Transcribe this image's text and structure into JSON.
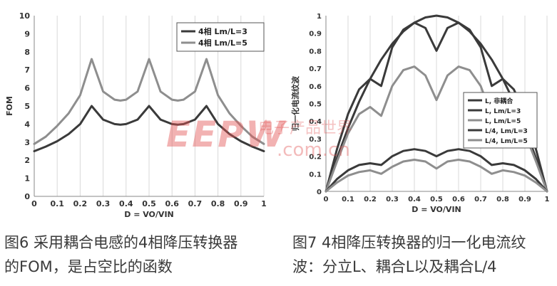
{
  "captions": {
    "left_line1": "图6  采用耦合电感的4相降压转换器",
    "left_line2": "的FOM，是占空比的函数",
    "right_line1": "图7  4相降压转换器的归一化电流纹",
    "right_line2": "波：分立L、耦合L以及耦合L/4"
  },
  "watermark": {
    "text": "EEPW",
    "cn": "电子产品世界",
    "url": ".com.cn"
  },
  "colors": {
    "dark": "#3a3a3a",
    "light": "#8e8e8e",
    "axis": "#888888",
    "grid": "#d8d8d8"
  },
  "chart_data": [
    {
      "type": "line",
      "title": "",
      "xlabel": "D = VO/VIN",
      "ylabel": "FOM",
      "xlim": [
        0,
        1
      ],
      "ylim": [
        0,
        10
      ],
      "xticks": [
        0,
        0.1,
        0.2,
        0.3,
        0.4,
        0.5,
        0.6,
        0.7,
        0.8,
        0.9,
        1
      ],
      "yticks": [
        0,
        1,
        2,
        3,
        4,
        5,
        6,
        7,
        8,
        9,
        10
      ],
      "grid": "vertical",
      "legend_position": "top-right",
      "series": [
        {
          "name": "4相 Lm/L=3",
          "color": "#3a3a3a",
          "x": [
            0,
            0.05,
            0.1,
            0.15,
            0.2,
            0.25,
            0.3,
            0.35,
            0.375,
            0.4,
            0.45,
            0.5,
            0.55,
            0.6,
            0.625,
            0.65,
            0.7,
            0.75,
            0.8,
            0.85,
            0.9,
            0.95,
            1
          ],
          "y": [
            2.5,
            2.75,
            3.05,
            3.45,
            4.0,
            5.0,
            4.25,
            4.0,
            3.97,
            4.0,
            4.25,
            5.0,
            4.25,
            4.0,
            3.97,
            4.0,
            4.25,
            5.0,
            4.0,
            3.45,
            3.05,
            2.75,
            2.5
          ]
        },
        {
          "name": "4相 Lm/L=5",
          "color": "#8e8e8e",
          "x": [
            0,
            0.05,
            0.1,
            0.15,
            0.2,
            0.25,
            0.3,
            0.35,
            0.375,
            0.4,
            0.45,
            0.5,
            0.55,
            0.6,
            0.625,
            0.65,
            0.7,
            0.75,
            0.8,
            0.85,
            0.9,
            0.95,
            1
          ],
          "y": [
            2.9,
            3.3,
            3.9,
            4.6,
            5.6,
            7.6,
            5.8,
            5.35,
            5.3,
            5.35,
            5.8,
            7.6,
            5.8,
            5.35,
            5.3,
            5.35,
            5.8,
            7.6,
            5.6,
            4.6,
            3.9,
            3.3,
            2.9
          ]
        }
      ]
    },
    {
      "type": "line",
      "title": "",
      "xlabel": "D = VO/VIN",
      "ylabel": "归一化电流纹波",
      "xlim": [
        0,
        1
      ],
      "ylim": [
        0,
        1
      ],
      "xticks": [
        0,
        0.1,
        0.2,
        0.3,
        0.4,
        0.5,
        0.6,
        0.7,
        0.8,
        0.9,
        1
      ],
      "yticks": [
        0,
        0.1,
        0.2,
        0.3,
        0.4,
        0.5,
        0.6,
        0.7,
        0.8,
        0.9,
        1
      ],
      "grid": "vertical",
      "legend_position": "middle-right",
      "series": [
        {
          "name": "L, 非耦合",
          "color": "#3a3a3a",
          "x": [
            0,
            0.05,
            0.1,
            0.15,
            0.2,
            0.25,
            0.3,
            0.35,
            0.4,
            0.45,
            0.5,
            0.55,
            0.6,
            0.65,
            0.7,
            0.75,
            0.8,
            0.85,
            0.9,
            0.95,
            1
          ],
          "y": [
            0,
            0.19,
            0.36,
            0.51,
            0.64,
            0.75,
            0.84,
            0.91,
            0.96,
            0.99,
            1.0,
            0.99,
            0.96,
            0.91,
            0.84,
            0.75,
            0.64,
            0.51,
            0.36,
            0.19,
            0
          ]
        },
        {
          "name": "L, Lm/L=3",
          "color": "#3a3a3a",
          "x": [
            0,
            0.05,
            0.1,
            0.15,
            0.2,
            0.25,
            0.3,
            0.35,
            0.4,
            0.45,
            0.5,
            0.55,
            0.6,
            0.65,
            0.7,
            0.75,
            0.8,
            0.85,
            0.9,
            0.95,
            1
          ],
          "y": [
            0,
            0.24,
            0.44,
            0.58,
            0.64,
            0.6,
            0.82,
            0.92,
            0.96,
            0.93,
            0.8,
            0.93,
            0.96,
            0.92,
            0.82,
            0.6,
            0.64,
            0.58,
            0.44,
            0.24,
            0
          ]
        },
        {
          "name": "L, Lm/L=5",
          "color": "#8e8e8e",
          "x": [
            0,
            0.05,
            0.1,
            0.15,
            0.2,
            0.25,
            0.3,
            0.35,
            0.4,
            0.45,
            0.5,
            0.55,
            0.6,
            0.65,
            0.7,
            0.75,
            0.8,
            0.85,
            0.9,
            0.95,
            1
          ],
          "y": [
            0,
            0.17,
            0.33,
            0.44,
            0.48,
            0.43,
            0.6,
            0.69,
            0.71,
            0.66,
            0.52,
            0.66,
            0.71,
            0.69,
            0.6,
            0.43,
            0.48,
            0.44,
            0.33,
            0.17,
            0
          ]
        },
        {
          "name": "L/4, Lm/L=3",
          "color": "#3a3a3a",
          "x": [
            0,
            0.05,
            0.1,
            0.15,
            0.2,
            0.25,
            0.3,
            0.35,
            0.4,
            0.45,
            0.5,
            0.55,
            0.6,
            0.65,
            0.7,
            0.75,
            0.8,
            0.85,
            0.9,
            0.95,
            1
          ],
          "y": [
            0,
            0.07,
            0.12,
            0.15,
            0.16,
            0.15,
            0.2,
            0.23,
            0.24,
            0.23,
            0.2,
            0.23,
            0.24,
            0.23,
            0.2,
            0.15,
            0.16,
            0.15,
            0.12,
            0.07,
            0
          ]
        },
        {
          "name": "L/4, Lm/L=5",
          "color": "#8e8e8e",
          "x": [
            0,
            0.05,
            0.1,
            0.15,
            0.2,
            0.25,
            0.3,
            0.35,
            0.4,
            0.45,
            0.5,
            0.55,
            0.6,
            0.65,
            0.7,
            0.75,
            0.8,
            0.85,
            0.9,
            0.95,
            1
          ],
          "y": [
            0,
            0.05,
            0.09,
            0.11,
            0.12,
            0.1,
            0.14,
            0.17,
            0.18,
            0.17,
            0.13,
            0.17,
            0.18,
            0.17,
            0.14,
            0.1,
            0.12,
            0.11,
            0.09,
            0.05,
            0
          ]
        }
      ]
    }
  ]
}
